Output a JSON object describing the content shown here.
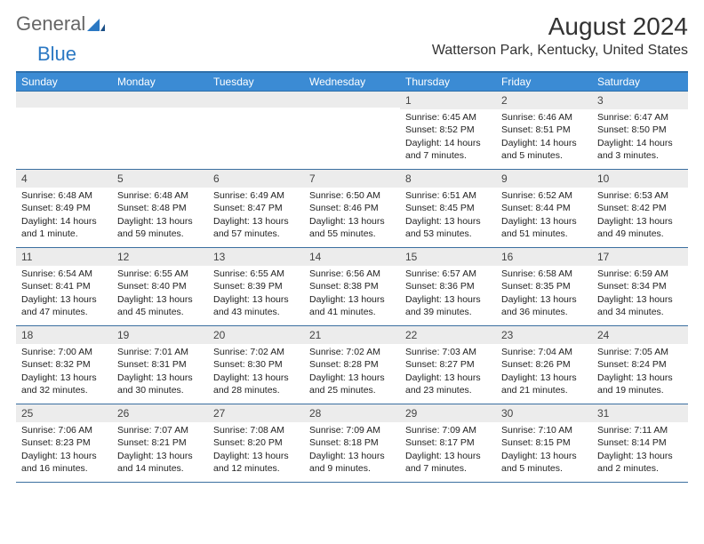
{
  "logo": {
    "word1": "General",
    "word2": "Blue"
  },
  "title": "August 2024",
  "location": "Watterson Park, Kentucky, United States",
  "columns": [
    "Sunday",
    "Monday",
    "Tuesday",
    "Wednesday",
    "Thursday",
    "Friday",
    "Saturday"
  ],
  "colors": {
    "header_bg": "#3b8bd4",
    "header_border": "#2f6fa9",
    "daynum_bg": "#ececec",
    "week_divider": "#3b6fa0",
    "text": "#222222",
    "logo_gray": "#666666",
    "logo_blue": "#2b78c3"
  },
  "weeks": [
    [
      {
        "n": "",
        "lines": []
      },
      {
        "n": "",
        "lines": []
      },
      {
        "n": "",
        "lines": []
      },
      {
        "n": "",
        "lines": []
      },
      {
        "n": "1",
        "lines": [
          "Sunrise: 6:45 AM",
          "Sunset: 8:52 PM",
          "Daylight: 14 hours and 7 minutes."
        ]
      },
      {
        "n": "2",
        "lines": [
          "Sunrise: 6:46 AM",
          "Sunset: 8:51 PM",
          "Daylight: 14 hours and 5 minutes."
        ]
      },
      {
        "n": "3",
        "lines": [
          "Sunrise: 6:47 AM",
          "Sunset: 8:50 PM",
          "Daylight: 14 hours and 3 minutes."
        ]
      }
    ],
    [
      {
        "n": "4",
        "lines": [
          "Sunrise: 6:48 AM",
          "Sunset: 8:49 PM",
          "Daylight: 14 hours and 1 minute."
        ]
      },
      {
        "n": "5",
        "lines": [
          "Sunrise: 6:48 AM",
          "Sunset: 8:48 PM",
          "Daylight: 13 hours and 59 minutes."
        ]
      },
      {
        "n": "6",
        "lines": [
          "Sunrise: 6:49 AM",
          "Sunset: 8:47 PM",
          "Daylight: 13 hours and 57 minutes."
        ]
      },
      {
        "n": "7",
        "lines": [
          "Sunrise: 6:50 AM",
          "Sunset: 8:46 PM",
          "Daylight: 13 hours and 55 minutes."
        ]
      },
      {
        "n": "8",
        "lines": [
          "Sunrise: 6:51 AM",
          "Sunset: 8:45 PM",
          "Daylight: 13 hours and 53 minutes."
        ]
      },
      {
        "n": "9",
        "lines": [
          "Sunrise: 6:52 AM",
          "Sunset: 8:44 PM",
          "Daylight: 13 hours and 51 minutes."
        ]
      },
      {
        "n": "10",
        "lines": [
          "Sunrise: 6:53 AM",
          "Sunset: 8:42 PM",
          "Daylight: 13 hours and 49 minutes."
        ]
      }
    ],
    [
      {
        "n": "11",
        "lines": [
          "Sunrise: 6:54 AM",
          "Sunset: 8:41 PM",
          "Daylight: 13 hours and 47 minutes."
        ]
      },
      {
        "n": "12",
        "lines": [
          "Sunrise: 6:55 AM",
          "Sunset: 8:40 PM",
          "Daylight: 13 hours and 45 minutes."
        ]
      },
      {
        "n": "13",
        "lines": [
          "Sunrise: 6:55 AM",
          "Sunset: 8:39 PM",
          "Daylight: 13 hours and 43 minutes."
        ]
      },
      {
        "n": "14",
        "lines": [
          "Sunrise: 6:56 AM",
          "Sunset: 8:38 PM",
          "Daylight: 13 hours and 41 minutes."
        ]
      },
      {
        "n": "15",
        "lines": [
          "Sunrise: 6:57 AM",
          "Sunset: 8:36 PM",
          "Daylight: 13 hours and 39 minutes."
        ]
      },
      {
        "n": "16",
        "lines": [
          "Sunrise: 6:58 AM",
          "Sunset: 8:35 PM",
          "Daylight: 13 hours and 36 minutes."
        ]
      },
      {
        "n": "17",
        "lines": [
          "Sunrise: 6:59 AM",
          "Sunset: 8:34 PM",
          "Daylight: 13 hours and 34 minutes."
        ]
      }
    ],
    [
      {
        "n": "18",
        "lines": [
          "Sunrise: 7:00 AM",
          "Sunset: 8:32 PM",
          "Daylight: 13 hours and 32 minutes."
        ]
      },
      {
        "n": "19",
        "lines": [
          "Sunrise: 7:01 AM",
          "Sunset: 8:31 PM",
          "Daylight: 13 hours and 30 minutes."
        ]
      },
      {
        "n": "20",
        "lines": [
          "Sunrise: 7:02 AM",
          "Sunset: 8:30 PM",
          "Daylight: 13 hours and 28 minutes."
        ]
      },
      {
        "n": "21",
        "lines": [
          "Sunrise: 7:02 AM",
          "Sunset: 8:28 PM",
          "Daylight: 13 hours and 25 minutes."
        ]
      },
      {
        "n": "22",
        "lines": [
          "Sunrise: 7:03 AM",
          "Sunset: 8:27 PM",
          "Daylight: 13 hours and 23 minutes."
        ]
      },
      {
        "n": "23",
        "lines": [
          "Sunrise: 7:04 AM",
          "Sunset: 8:26 PM",
          "Daylight: 13 hours and 21 minutes."
        ]
      },
      {
        "n": "24",
        "lines": [
          "Sunrise: 7:05 AM",
          "Sunset: 8:24 PM",
          "Daylight: 13 hours and 19 minutes."
        ]
      }
    ],
    [
      {
        "n": "25",
        "lines": [
          "Sunrise: 7:06 AM",
          "Sunset: 8:23 PM",
          "Daylight: 13 hours and 16 minutes."
        ]
      },
      {
        "n": "26",
        "lines": [
          "Sunrise: 7:07 AM",
          "Sunset: 8:21 PM",
          "Daylight: 13 hours and 14 minutes."
        ]
      },
      {
        "n": "27",
        "lines": [
          "Sunrise: 7:08 AM",
          "Sunset: 8:20 PM",
          "Daylight: 13 hours and 12 minutes."
        ]
      },
      {
        "n": "28",
        "lines": [
          "Sunrise: 7:09 AM",
          "Sunset: 8:18 PM",
          "Daylight: 13 hours and 9 minutes."
        ]
      },
      {
        "n": "29",
        "lines": [
          "Sunrise: 7:09 AM",
          "Sunset: 8:17 PM",
          "Daylight: 13 hours and 7 minutes."
        ]
      },
      {
        "n": "30",
        "lines": [
          "Sunrise: 7:10 AM",
          "Sunset: 8:15 PM",
          "Daylight: 13 hours and 5 minutes."
        ]
      },
      {
        "n": "31",
        "lines": [
          "Sunrise: 7:11 AM",
          "Sunset: 8:14 PM",
          "Daylight: 13 hours and 2 minutes."
        ]
      }
    ]
  ]
}
